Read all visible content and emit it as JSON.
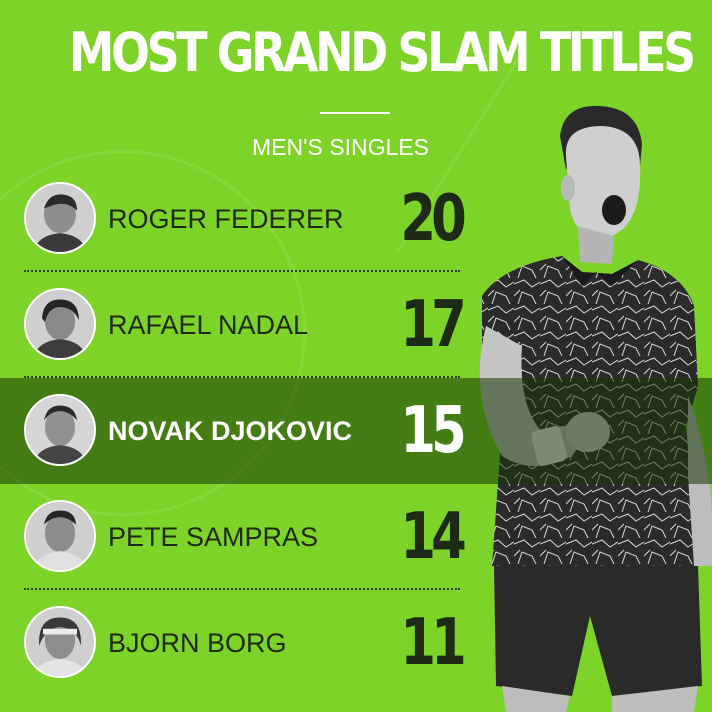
{
  "title": "MOST GRAND SLAM TITLES",
  "subtitle": "MEN'S SINGLES",
  "colors": {
    "background": "#7dd327",
    "highlight_band": "#2a4410",
    "text_dark": "#1e2a17",
    "text_light": "#ffffff"
  },
  "chart_data": {
    "type": "table",
    "title": "MOST GRAND SLAM TITLES",
    "subtitle": "MEN'S SINGLES",
    "categories": [
      "ROGER FEDERER",
      "RAFAEL NADAL",
      "NOVAK DJOKOVIC",
      "PETE SAMPRAS",
      "BJORN BORG"
    ],
    "values": [
      20,
      17,
      15,
      14,
      11
    ],
    "highlighted": "NOVAK DJOKOVIC",
    "rows": [
      {
        "name": "ROGER FEDERER",
        "value": "20"
      },
      {
        "name": "RAFAEL NADAL",
        "value": "17"
      },
      {
        "name": "NOVAK DJOKOVIC",
        "value": "15"
      },
      {
        "name": "PETE SAMPRAS",
        "value": "14"
      },
      {
        "name": "BJORN BORG",
        "value": "11"
      }
    ]
  }
}
